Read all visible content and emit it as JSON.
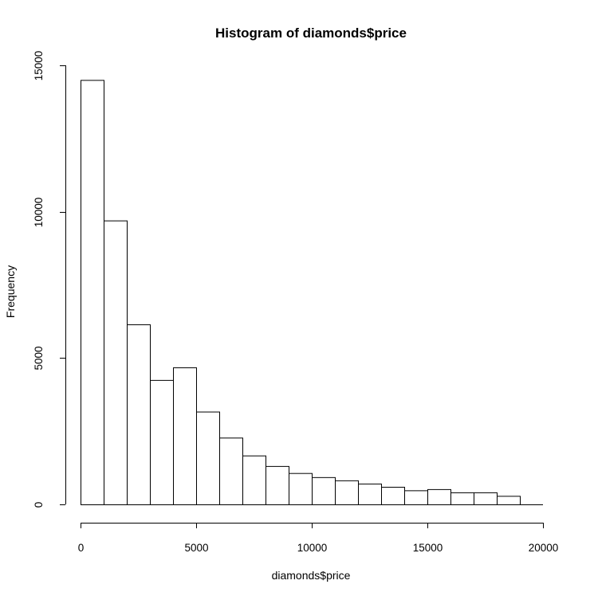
{
  "chart_data": {
    "type": "bar",
    "title": "Histogram of diamonds$price",
    "xlabel": "diamonds$price",
    "ylabel": "Frequency",
    "xlim": [
      0,
      20000
    ],
    "ylim": [
      0,
      15000
    ],
    "grid": false,
    "bin_width": 1000,
    "bins": [
      [
        0,
        1000
      ],
      [
        1000,
        2000
      ],
      [
        2000,
        3000
      ],
      [
        3000,
        4000
      ],
      [
        4000,
        5000
      ],
      [
        5000,
        6000
      ],
      [
        6000,
        7000
      ],
      [
        7000,
        8000
      ],
      [
        8000,
        9000
      ],
      [
        9000,
        10000
      ],
      [
        10000,
        11000
      ],
      [
        11000,
        12000
      ],
      [
        12000,
        13000
      ],
      [
        13000,
        14000
      ],
      [
        14000,
        15000
      ],
      [
        15000,
        16000
      ],
      [
        16000,
        17000
      ],
      [
        17000,
        18000
      ],
      [
        18000,
        19000
      ]
    ],
    "values": [
      14500,
      9700,
      6150,
      4250,
      4680,
      3170,
      2280,
      1670,
      1310,
      1070,
      930,
      820,
      710,
      600,
      480,
      520,
      410,
      410,
      290
    ],
    "x_ticks": [
      0,
      5000,
      10000,
      15000,
      20000
    ],
    "x_tick_labels": [
      "0",
      "5000",
      "10000",
      "15000",
      "20000"
    ],
    "y_ticks": [
      0,
      5000,
      10000,
      15000
    ],
    "y_tick_labels": [
      "0",
      "5000",
      "10000",
      "15000"
    ]
  }
}
